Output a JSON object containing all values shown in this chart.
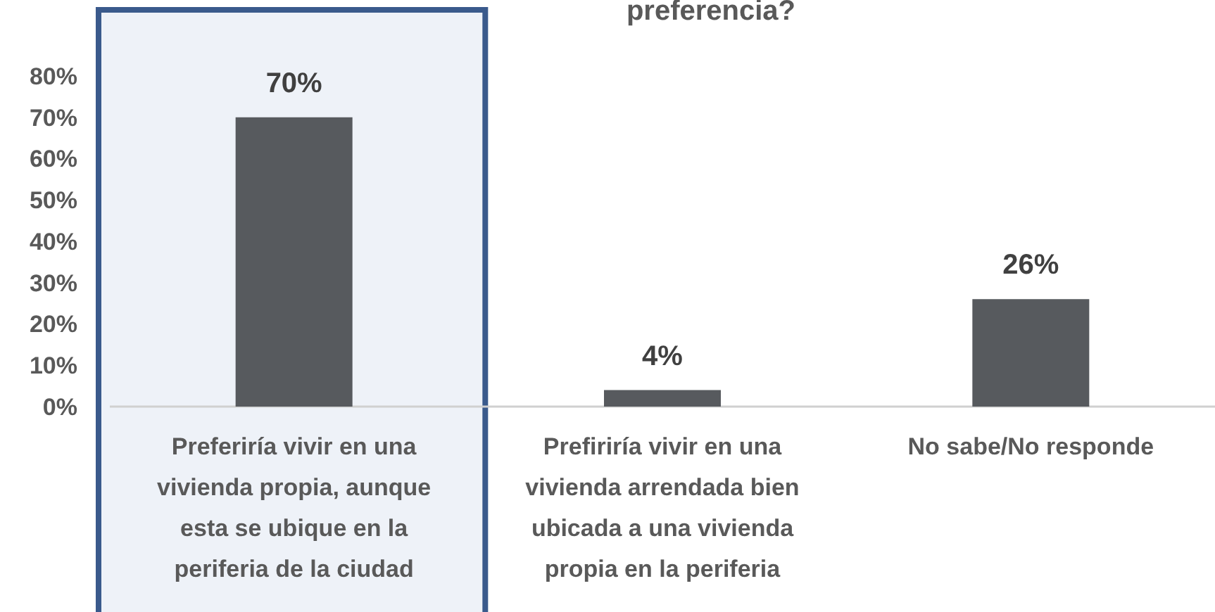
{
  "chart_data": {
    "type": "bar",
    "title": "preferencia?",
    "categories": [
      "Preferiría vivir en una vivienda propia, aunque esta se ubique en la periferia de la ciudad",
      "Prefiriría vivir en una vivienda arrendada bien ubicada a una vivienda propia en la periferia",
      "No sabe/No responde"
    ],
    "values": [
      70,
      4,
      26
    ],
    "color": "#575a5e",
    "data_labels": true,
    "value_labels": [
      "70%",
      "4%",
      "26%"
    ],
    "ylim": [
      0,
      96
    ],
    "yticks": [
      {
        "value": 0,
        "label": "0%"
      },
      {
        "value": 10,
        "label": "10%"
      },
      {
        "value": 20,
        "label": "20%"
      },
      {
        "value": 30,
        "label": "30%"
      },
      {
        "value": 40,
        "label": "40%"
      },
      {
        "value": 50,
        "label": "50%"
      },
      {
        "value": 60,
        "label": "60%"
      },
      {
        "value": 70,
        "label": "70%"
      },
      {
        "value": 80,
        "label": "80%"
      }
    ],
    "grid": false,
    "bands": [
      {
        "axis": "x",
        "from": "Preferiría vivir en una vivienda propia, aunque esta se ubique en la periferia de la ciudad",
        "to": "Preferiría vivir en una vivienda propia, aunque esta se ubique en la periferia de la ciudad",
        "color": "#eef2f8"
      }
    ]
  }
}
